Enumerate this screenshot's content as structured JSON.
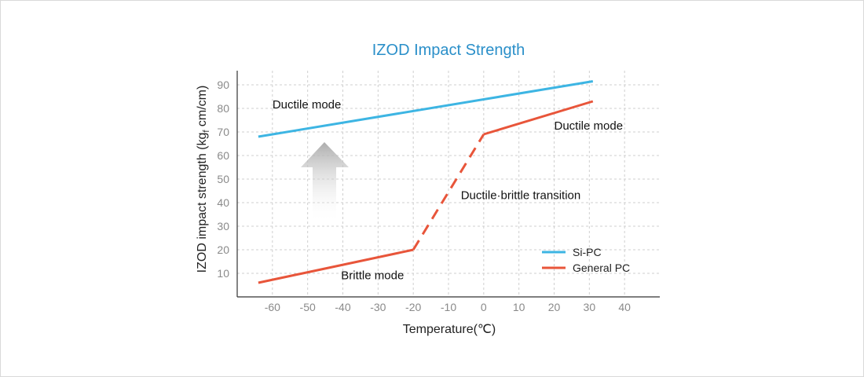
{
  "chart_data": {
    "type": "line",
    "title": "IZOD Impact Strength",
    "xlabel": "Temperature(℃)",
    "ylabel": "IZOD impact strength (kgf cm/cm)",
    "ylabel_main": "IZOD impact strength (kg",
    "ylabel_sub": "f",
    "ylabel_tail": " cm/cm)",
    "xlim": [
      -70,
      50
    ],
    "ylim": [
      0,
      96
    ],
    "x_ticks": [
      -60,
      -50,
      -40,
      -30,
      -20,
      -10,
      0,
      10,
      20,
      30,
      40
    ],
    "y_ticks": [
      10,
      20,
      30,
      40,
      50,
      60,
      70,
      80,
      90
    ],
    "grid": true,
    "legend_position": "bottom-right",
    "series": [
      {
        "name": "Si-PC",
        "color": "#3db5e3",
        "segments": [
          {
            "style": "solid",
            "points": [
              [
                -64,
                68
              ],
              [
                31,
                91.5
              ]
            ]
          }
        ]
      },
      {
        "name": "General PC",
        "color": "#e8553a",
        "segments": [
          {
            "style": "solid",
            "points": [
              [
                -64,
                6
              ],
              [
                -20,
                20
              ]
            ]
          },
          {
            "style": "dashed",
            "points": [
              [
                -20,
                20
              ],
              [
                0,
                69
              ]
            ]
          },
          {
            "style": "solid",
            "points": [
              [
                0,
                69
              ],
              [
                31,
                83
              ]
            ]
          }
        ]
      }
    ],
    "annotations": [
      {
        "text": "Ductile mode",
        "x": -60,
        "y": 80
      },
      {
        "text": "Ductile mode",
        "x": 20,
        "y": 71
      },
      {
        "text": "Ductile·brittle transition",
        "x": -6.5,
        "y": 41.5
      },
      {
        "text": "Brittle mode",
        "x": -40.5,
        "y": 7.5
      }
    ]
  }
}
